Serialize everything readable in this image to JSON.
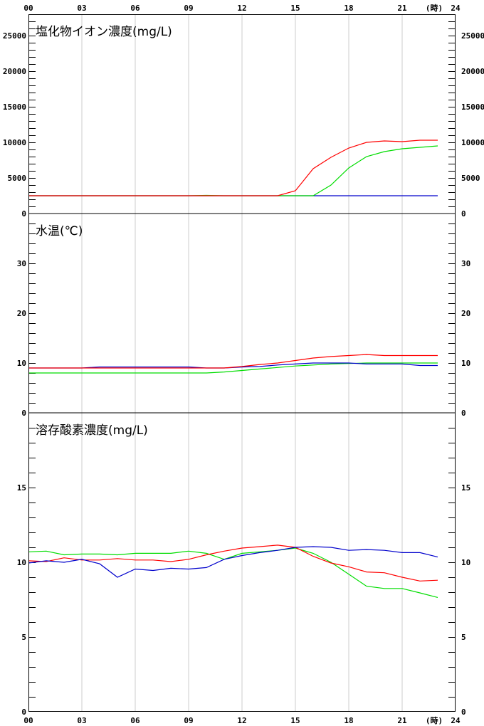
{
  "chart_data": {
    "type": "line",
    "x_axis": {
      "unit_label": "(時)",
      "ticks": [
        "00",
        "03",
        "06",
        "09",
        "12",
        "15",
        "18",
        "21",
        "24"
      ],
      "range": [
        0,
        24
      ],
      "positions": "top-and-bottom"
    },
    "vertical_grid": true,
    "colors": {
      "red": "#ff0000",
      "green": "#00dd00",
      "blue": "#0000cc",
      "grid": "#cccccc",
      "frame": "#000000"
    },
    "panels": [
      {
        "title": "塩化物イオン濃度(mg/L)",
        "ylim": [
          0,
          28000
        ],
        "ytick_labels": [
          "0",
          "5000",
          "10000",
          "15000",
          "20000",
          "25000"
        ],
        "ytick_values": [
          0,
          5000,
          10000,
          15000,
          20000,
          25000
        ],
        "minor_step": 1000,
        "series": [
          {
            "color": "#0000cc",
            "x": [
              0,
              1,
              2,
              3,
              4,
              5,
              6,
              7,
              8,
              9,
              10,
              11,
              12,
              13,
              14,
              15,
              16,
              17,
              18,
              19,
              20,
              21,
              22,
              23
            ],
            "y": [
              2500,
              2500,
              2500,
              2500,
              2500,
              2500,
              2500,
              2500,
              2500,
              2500,
              2500,
              2500,
              2500,
              2500,
              2500,
              2500,
              2500,
              2500,
              2500,
              2500,
              2500,
              2500,
              2500,
              2500
            ]
          },
          {
            "color": "#00dd00",
            "x": [
              0,
              1,
              2,
              3,
              4,
              5,
              6,
              7,
              8,
              9,
              10,
              11,
              12,
              13,
              14,
              15,
              16,
              17,
              18,
              19,
              20,
              21,
              22,
              23
            ],
            "y": [
              2500,
              2500,
              2500,
              2500,
              2500,
              2500,
              2500,
              2500,
              2500,
              2500,
              2550,
              2500,
              2500,
              2500,
              2500,
              2500,
              2500,
              4000,
              6400,
              8000,
              8700,
              9100,
              9300,
              9500
            ]
          },
          {
            "color": "#ff0000",
            "x": [
              0,
              1,
              2,
              3,
              4,
              5,
              6,
              7,
              8,
              9,
              10,
              11,
              12,
              13,
              14,
              15,
              16,
              17,
              18,
              19,
              20,
              21,
              22,
              23
            ],
            "y": [
              2500,
              2500,
              2500,
              2500,
              2500,
              2500,
              2500,
              2500,
              2500,
              2500,
              2500,
              2500,
              2500,
              2500,
              2500,
              3200,
              6300,
              7900,
              9200,
              10000,
              10200,
              10100,
              10300,
              10300
            ]
          }
        ]
      },
      {
        "title": "水温(℃)",
        "ylim": [
          0,
          40
        ],
        "ytick_labels": [
          "0",
          "10",
          "20",
          "30"
        ],
        "ytick_values": [
          0,
          10,
          20,
          30
        ],
        "minor_step": 2,
        "series": [
          {
            "color": "#00dd00",
            "x": [
              0,
              1,
              2,
              3,
              4,
              5,
              6,
              7,
              8,
              9,
              10,
              11,
              12,
              13,
              14,
              15,
              16,
              17,
              18,
              19,
              20,
              21,
              22,
              23
            ],
            "y": [
              8,
              8,
              8,
              8,
              8,
              8,
              8,
              8,
              8,
              8,
              8,
              8.2,
              8.5,
              8.8,
              9.1,
              9.4,
              9.6,
              9.8,
              9.9,
              10,
              10,
              10,
              10,
              10
            ]
          },
          {
            "color": "#0000cc",
            "x": [
              0,
              1,
              2,
              3,
              4,
              5,
              6,
              7,
              8,
              9,
              10,
              11,
              12,
              13,
              14,
              15,
              16,
              17,
              18,
              19,
              20,
              21,
              22,
              23
            ],
            "y": [
              9,
              9,
              9,
              9,
              9.2,
              9.2,
              9.2,
              9.2,
              9.2,
              9.2,
              9,
              9,
              9.2,
              9.3,
              9.6,
              9.8,
              10,
              10,
              10,
              9.8,
              9.8,
              9.8,
              9.5,
              9.5
            ]
          },
          {
            "color": "#ff0000",
            "x": [
              0,
              1,
              2,
              3,
              4,
              5,
              6,
              7,
              8,
              9,
              10,
              11,
              12,
              13,
              14,
              15,
              16,
              17,
              18,
              19,
              20,
              21,
              22,
              23
            ],
            "y": [
              9,
              9,
              9,
              9,
              9,
              9,
              9,
              9,
              9,
              9,
              9,
              9,
              9.3,
              9.7,
              10,
              10.5,
              11,
              11.3,
              11.5,
              11.7,
              11.5,
              11.5,
              11.5,
              11.5
            ]
          }
        ]
      },
      {
        "title": "溶存酸素濃度(mg/L)",
        "ylim": [
          0,
          20
        ],
        "ytick_labels": [
          "0",
          "5",
          "10",
          "15"
        ],
        "ytick_values": [
          0,
          5,
          10,
          15
        ],
        "minor_step": 1,
        "series": [
          {
            "color": "#00dd00",
            "x": [
              0,
              1,
              2,
              3,
              4,
              5,
              6,
              7,
              8,
              9,
              10,
              11,
              12,
              13,
              14,
              15,
              16,
              17,
              18,
              19,
              20,
              21,
              22,
              23
            ],
            "y": [
              10.7,
              10.75,
              10.5,
              10.55,
              10.55,
              10.5,
              10.6,
              10.6,
              10.6,
              10.75,
              10.6,
              10.2,
              10.6,
              10.7,
              10.8,
              10.95,
              10.6,
              10,
              9.2,
              8.4,
              8.25,
              8.25,
              7.95,
              7.65
            ]
          },
          {
            "color": "#ff0000",
            "x": [
              0,
              1,
              2,
              3,
              4,
              5,
              6,
              7,
              8,
              9,
              10,
              11,
              12,
              13,
              14,
              15,
              16,
              17,
              18,
              19,
              20,
              21,
              22,
              23
            ],
            "y": [
              10.1,
              10.05,
              10.3,
              10.15,
              10.15,
              10.25,
              10.15,
              10.15,
              10.05,
              10.2,
              10.5,
              10.75,
              10.95,
              11.05,
              11.15,
              11.0,
              10.4,
              9.95,
              9.7,
              9.35,
              9.3,
              9.0,
              8.75,
              8.8
            ]
          },
          {
            "color": "#0000cc",
            "x": [
              0,
              1,
              2,
              3,
              4,
              5,
              6,
              7,
              8,
              9,
              10,
              11,
              12,
              13,
              14,
              15,
              16,
              17,
              18,
              19,
              20,
              21,
              22,
              23
            ],
            "y": [
              9.95,
              10.1,
              10.0,
              10.2,
              9.9,
              9.0,
              9.55,
              9.45,
              9.6,
              9.55,
              9.65,
              10.2,
              10.45,
              10.65,
              10.8,
              11.0,
              11.05,
              11.0,
              10.8,
              10.85,
              10.8,
              10.65,
              10.65,
              10.35
            ]
          }
        ]
      }
    ]
  }
}
